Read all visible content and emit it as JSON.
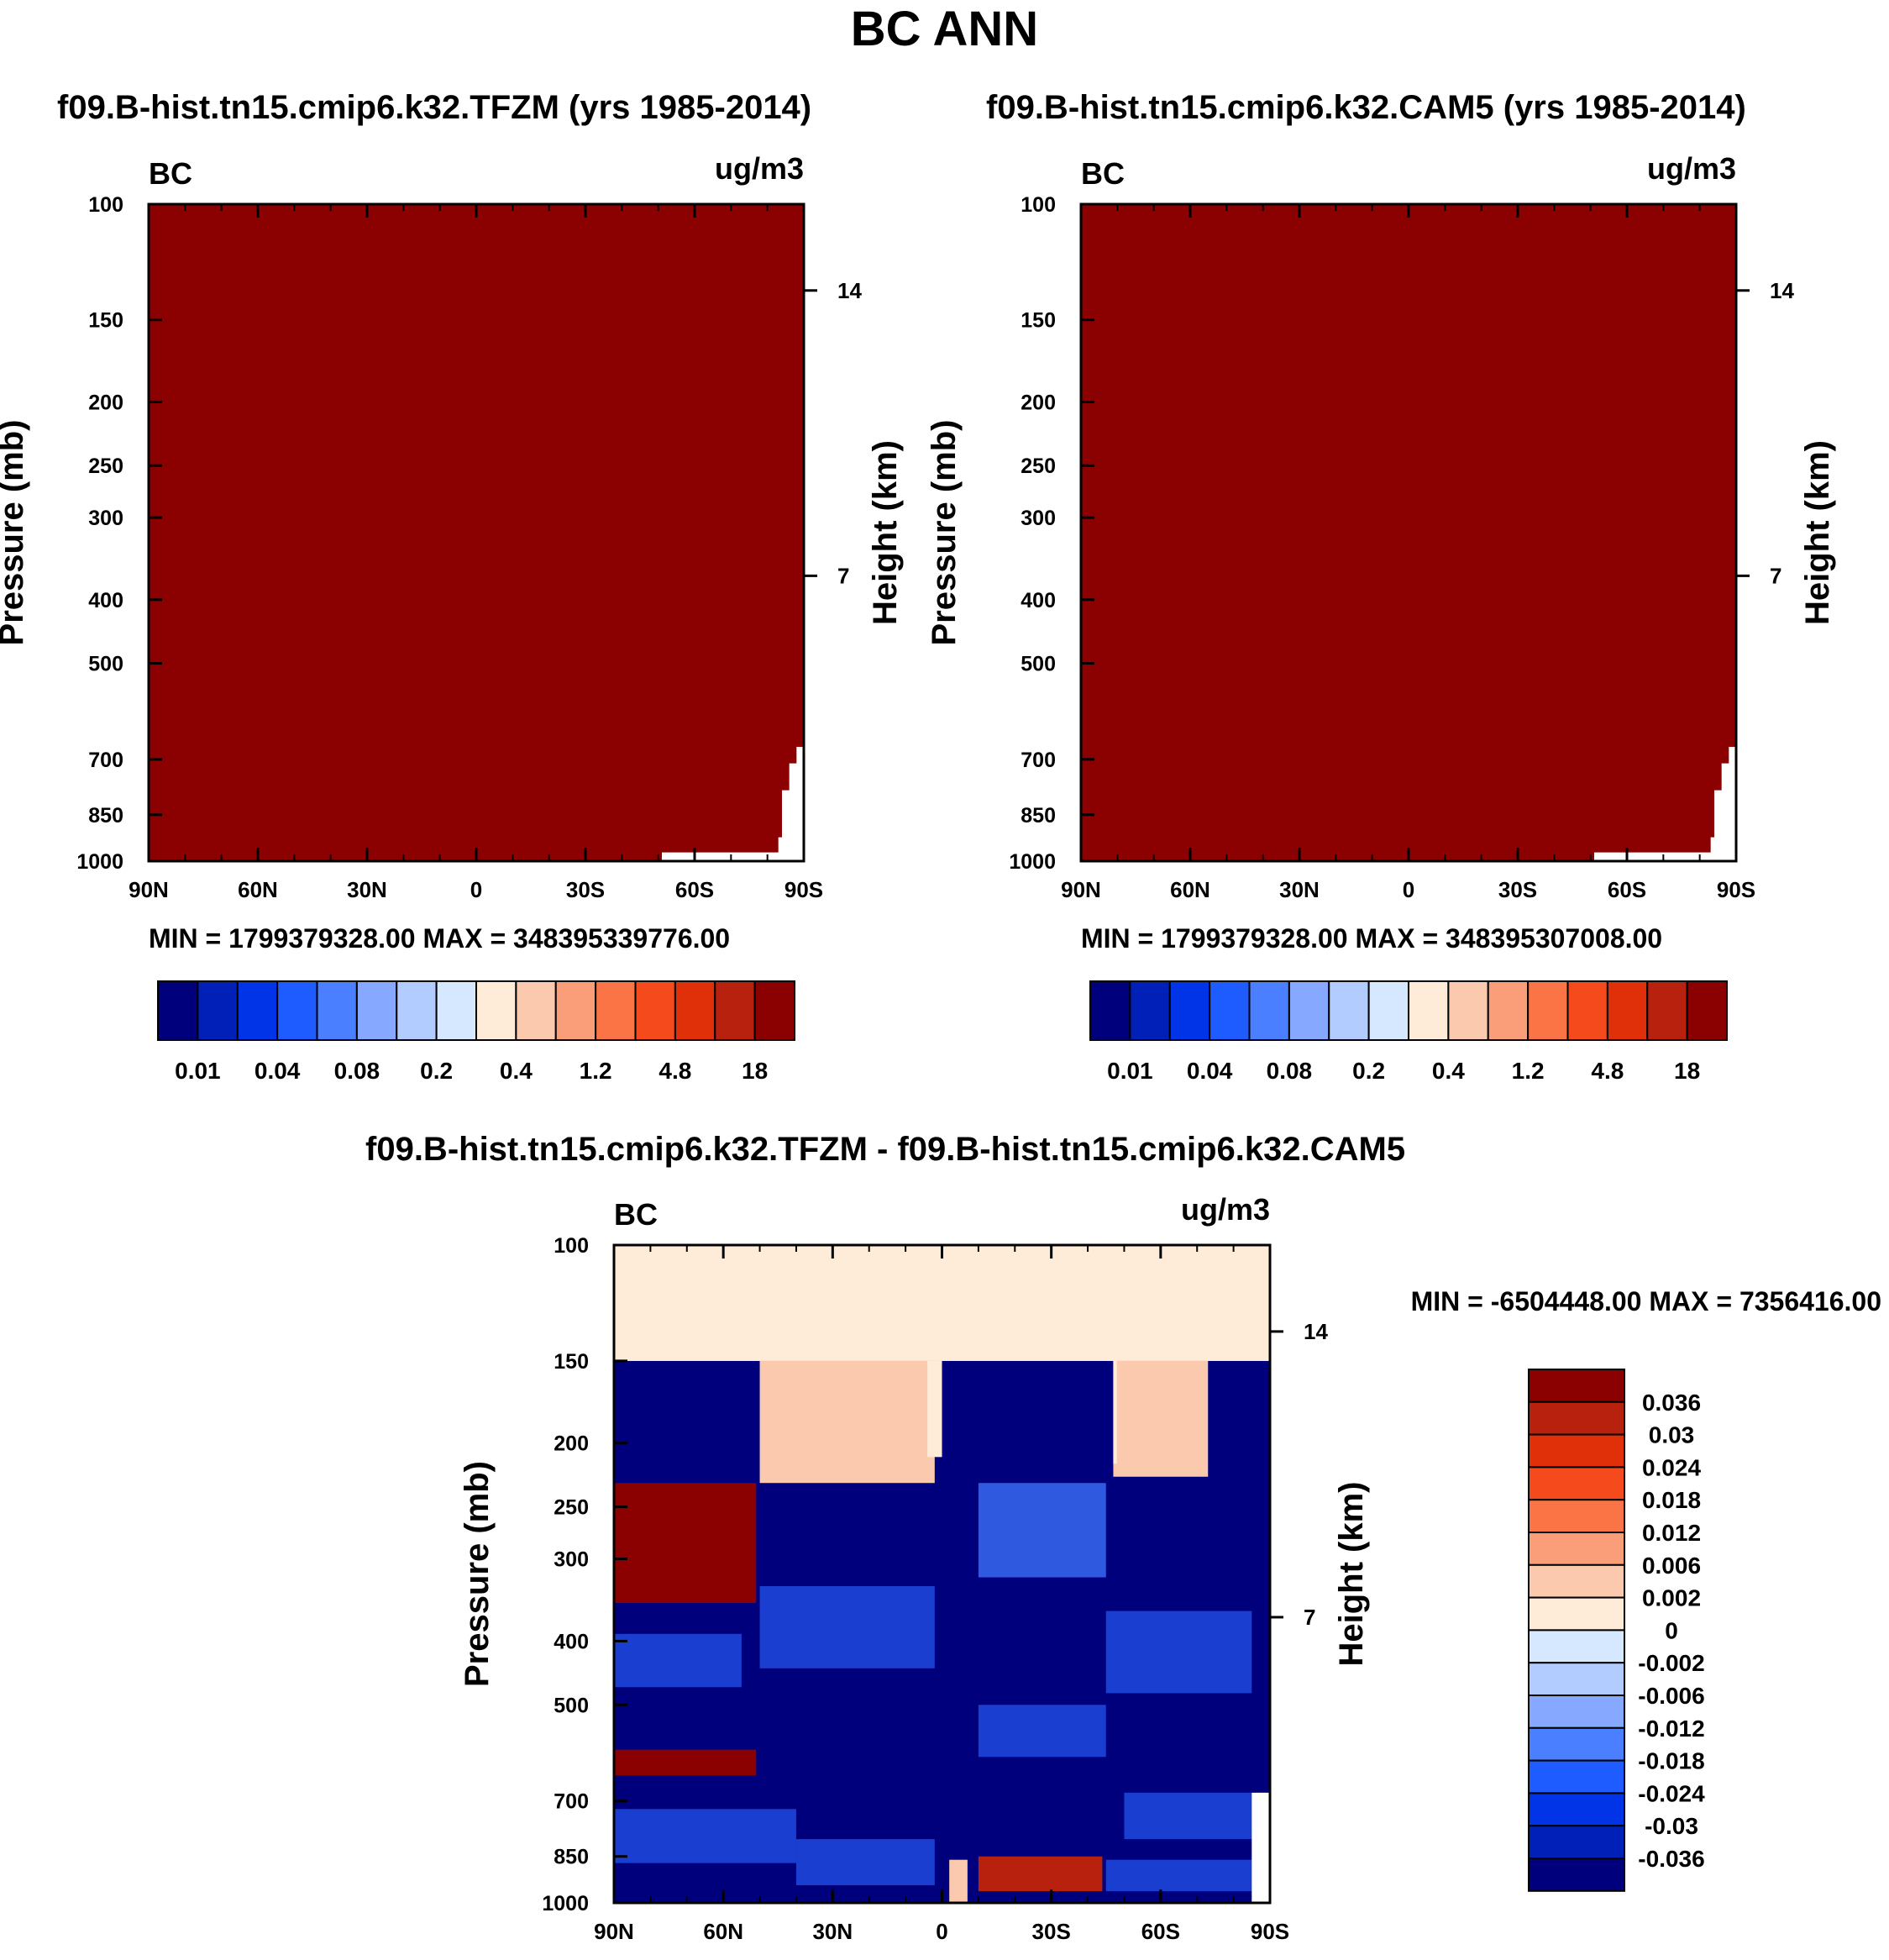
{
  "main_title": "BC ANN",
  "chart_data": [
    {
      "type": "heatmap",
      "title": "f09.B-hist.tn15.cmip6.k32.TFZM (yrs 1985-2014)",
      "variable": "BC",
      "units": "ug/m3",
      "ylabel": "Pressure (mb)",
      "ylabel_right": "Height (km)",
      "x_ticks": [
        "90N",
        "60N",
        "30N",
        "0",
        "30S",
        "60S",
        "90S"
      ],
      "y_ticks": [
        100,
        150,
        200,
        250,
        300,
        400,
        500,
        700,
        850,
        1000
      ],
      "y_scale": "log",
      "y_right_ticks": [
        14,
        7
      ],
      "stats": "MIN = 1799379328.00   MAX = 348395339776.00",
      "colorbar_labels": [
        "0.01",
        "0.04",
        "0.08",
        "0.2",
        "0.4",
        "1.2",
        "4.8",
        "18"
      ],
      "fill_level": "above 18 (entire field dark red)"
    },
    {
      "type": "heatmap",
      "title": "f09.B-hist.tn15.cmip6.k32.CAM5 (yrs 1985-2014)",
      "variable": "BC",
      "units": "ug/m3",
      "ylabel": "Pressure (mb)",
      "ylabel_right": "Height (km)",
      "x_ticks": [
        "90N",
        "60N",
        "30N",
        "0",
        "30S",
        "60S",
        "90S"
      ],
      "y_ticks": [
        100,
        150,
        200,
        250,
        300,
        400,
        500,
        700,
        850,
        1000
      ],
      "y_scale": "log",
      "y_right_ticks": [
        14,
        7
      ],
      "stats": "MIN = 1799379328.00   MAX = 348395307008.00",
      "colorbar_labels": [
        "0.01",
        "0.04",
        "0.08",
        "0.2",
        "0.4",
        "1.2",
        "4.8",
        "18"
      ],
      "fill_level": "above 18 (entire field dark red)"
    },
    {
      "type": "heatmap",
      "title": "f09.B-hist.tn15.cmip6.k32.TFZM - f09.B-hist.tn15.cmip6.k32.CAM5",
      "variable": "BC",
      "units": "ug/m3",
      "ylabel": "Pressure (mb)",
      "ylabel_right": "Height (km)",
      "x_ticks": [
        "90N",
        "60N",
        "30N",
        "0",
        "30S",
        "60S",
        "90S"
      ],
      "y_ticks": [
        100,
        150,
        200,
        250,
        300,
        400,
        500,
        700,
        850,
        1000
      ],
      "y_scale": "log",
      "y_right_ticks": [
        14,
        7
      ],
      "stats": "MIN = -6504448.00   MAX = 7356416.00",
      "colorbar_labels": [
        "0.036",
        "0.03",
        "0.024",
        "0.018",
        "0.012",
        "0.006",
        "0.002",
        "0",
        "-0.002",
        "-0.006",
        "-0.012",
        "-0.018",
        "-0.024",
        "-0.03",
        "-0.036"
      ]
    }
  ],
  "colors": {
    "seq": [
      "#00007d",
      "#0020b8",
      "#0034e6",
      "#1f5cff",
      "#4a80ff",
      "#87a8ff",
      "#b2ccff",
      "#d6e8ff",
      "#feecd9",
      "#fbc9ae",
      "#fa9e7a",
      "#fa7446",
      "#f54a1c",
      "#e0300a",
      "#b8210e",
      "#8b0000"
    ],
    "positive_bands": "#feecd9 / #fbc9ae / #8b0000 / #b8210e",
    "negative_bands": "#00007d / #0a1ea8 / #1a3ed0 / #2f5ae0"
  }
}
